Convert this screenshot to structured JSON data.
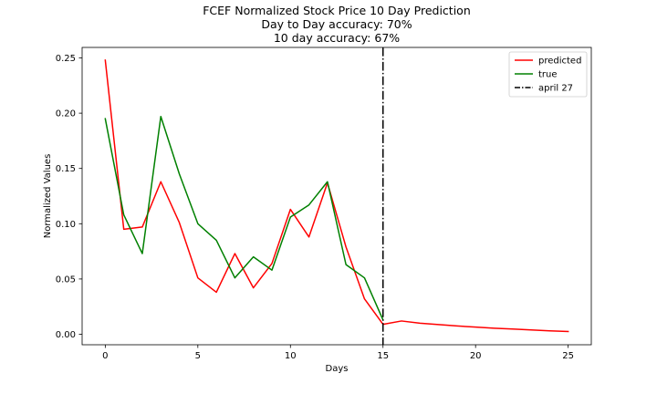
{
  "chart_data": {
    "type": "line",
    "title_lines": [
      "FCEF Normalized Stock Price 10 Day Prediction",
      "Day to Day accuracy: 70%",
      "10 day accuracy: 67%"
    ],
    "xlabel": "Days",
    "ylabel": "Normalized Values",
    "xlim": [
      -1.25,
      26.25
    ],
    "ylim": [
      -0.0095,
      0.2595
    ],
    "xticks": [
      0,
      5,
      10,
      15,
      20,
      25
    ],
    "xtick_labels": [
      "0",
      "5",
      "10",
      "15",
      "20",
      "25"
    ],
    "yticks": [
      0.0,
      0.05,
      0.1,
      0.15,
      0.2,
      0.25
    ],
    "ytick_labels": [
      "0.00",
      "0.05",
      "0.10",
      "0.15",
      "0.20",
      "0.25"
    ],
    "grid": false,
    "legend_position": "top-right",
    "series": [
      {
        "name": "predicted",
        "color": "#ff0000",
        "x": [
          0,
          1,
          2,
          3,
          4,
          5,
          6,
          7,
          8,
          9,
          10,
          11,
          12,
          13,
          14,
          15,
          16,
          17,
          18,
          19,
          20,
          21,
          22,
          23,
          24,
          25
        ],
        "y": [
          0.248,
          0.095,
          0.097,
          0.138,
          0.101,
          0.051,
          0.038,
          0.073,
          0.042,
          0.064,
          0.113,
          0.088,
          0.137,
          0.079,
          0.032,
          0.009,
          0.012,
          0.01,
          0.0088,
          0.0075,
          0.0065,
          0.0055,
          0.0047,
          0.0039,
          0.0031,
          0.0025
        ]
      },
      {
        "name": "true",
        "color": "#008000",
        "x": [
          0,
          1,
          2,
          3,
          4,
          5,
          6,
          7,
          8,
          9,
          10,
          11,
          12,
          13,
          14,
          15
        ],
        "y": [
          0.195,
          0.108,
          0.073,
          0.197,
          0.145,
          0.1,
          0.085,
          0.051,
          0.07,
          0.058,
          0.106,
          0.117,
          0.138,
          0.063,
          0.051,
          0.013
        ]
      }
    ],
    "vline": {
      "name": "april 27",
      "x": 15,
      "color": "#000000",
      "style": "dash-dot"
    }
  }
}
